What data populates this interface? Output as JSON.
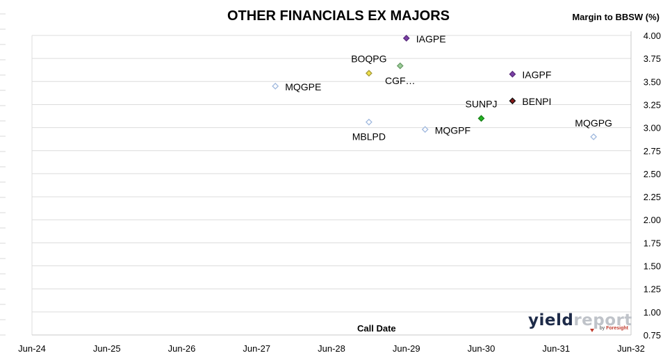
{
  "chart_data": {
    "type": "scatter",
    "title": "OTHER FINANCIALS EX MAJORS",
    "xlabel": "Call Date",
    "ylabel": "Margin to BBSW (%)",
    "ylim": [
      0.75,
      4.0
    ],
    "xlim": [
      "Jun-24",
      "Jun-32"
    ],
    "grid": true,
    "legend": "none",
    "y_ticks": [
      "0.75",
      "1.00",
      "1.25",
      "1.50",
      "1.75",
      "2.00",
      "2.25",
      "2.50",
      "2.75",
      "3.00",
      "3.25",
      "3.50",
      "3.75",
      "4.00"
    ],
    "x_ticks": [
      "Jun-24",
      "Jun-25",
      "Jun-26",
      "Jun-27",
      "Jun-28",
      "Jun-29",
      "Jun-30",
      "Jun-31",
      "Jun-32"
    ],
    "points": [
      {
        "label": "MQGPE",
        "x": "2027-09",
        "y": 3.45,
        "color": "#ffffff",
        "stroke": "#9fb8de",
        "label_pos": "right"
      },
      {
        "label": "BOQPG",
        "x": "2028-12",
        "y": 3.59,
        "color": "#f2e14a",
        "stroke": "#a49a3a",
        "label_pos": "above-left"
      },
      {
        "label": "IAGPE",
        "x": "2029-06",
        "y": 3.97,
        "color": "#7b3fa6",
        "stroke": "#5a2c7c",
        "label_pos": "right"
      },
      {
        "label": "CGF…",
        "x": "2029-05",
        "y": 3.67,
        "color": "#9ccf9a",
        "stroke": "#6a9a66",
        "label_pos": "below"
      },
      {
        "label": "IAGPF",
        "x": "2030-11",
        "y": 3.58,
        "color": "#7b3fa6",
        "stroke": "#5a2c7c",
        "label_pos": "right"
      },
      {
        "label": "BENPI",
        "x": "2030-11",
        "y": 3.29,
        "color": "#8b1a1a",
        "stroke": "#111111",
        "label_pos": "right"
      },
      {
        "label": "SUNPJ",
        "x": "2030-06",
        "y": 3.1,
        "color": "#22b422",
        "stroke": "#188018",
        "label_pos": "above-left"
      },
      {
        "label": "MBLPD",
        "x": "2028-12",
        "y": 3.06,
        "color": "#ffffff",
        "stroke": "#9fb8de",
        "label_pos": "below"
      },
      {
        "label": "MQGPF",
        "x": "2029-09",
        "y": 2.98,
        "color": "#ffffff",
        "stroke": "#9fb8de",
        "label_pos": "right"
      },
      {
        "label": "MQGPG",
        "x": "2031-12",
        "y": 2.9,
        "color": "#ffffff",
        "stroke": "#9fb8de",
        "label_pos": "above"
      }
    ]
  },
  "logo": {
    "part1": "yield",
    "part2": "report",
    "by": "by ",
    "by_brand": "Foresight"
  }
}
